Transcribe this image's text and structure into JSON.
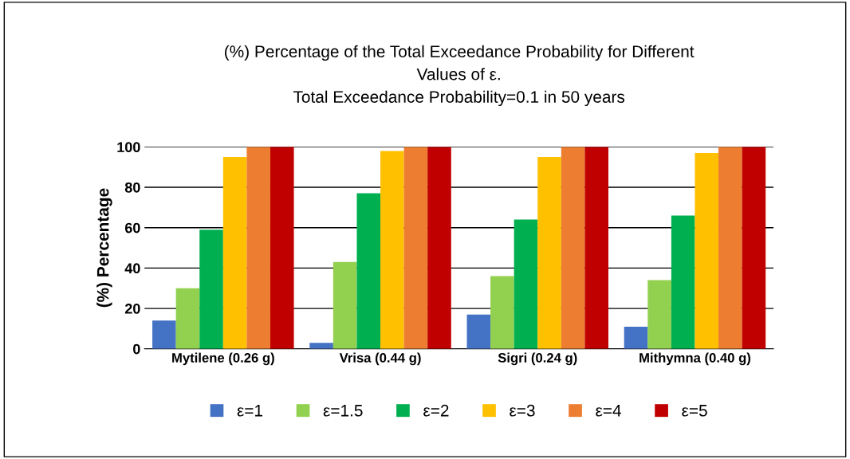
{
  "chart_data": {
    "type": "bar",
    "title": "(%) Percentage of the Total Exceedance Probability for Different\nValues of ε.\nTotal Exceedance Probability=0.1 in 50 years",
    "ylabel": "(%) Percentage",
    "categories": [
      "Mytilene (0.26 g)",
      "Vrisa (0.44 g)",
      "Sigri (0.24 g)",
      "Mithymna (0.40 g)"
    ],
    "series": [
      {
        "name": "ε=1",
        "color": "#4472c4",
        "values": [
          14,
          3,
          17,
          11
        ]
      },
      {
        "name": "ε=1.5",
        "color": "#92d050",
        "values": [
          30,
          43,
          36,
          34
        ]
      },
      {
        "name": "ε=2",
        "color": "#00b050",
        "values": [
          59,
          77,
          64,
          66
        ]
      },
      {
        "name": "ε=3",
        "color": "#ffc000",
        "values": [
          95,
          98,
          95,
          97
        ]
      },
      {
        "name": "ε=4",
        "color": "#ed7d31",
        "values": [
          100,
          100,
          100,
          100
        ]
      },
      {
        "name": "ε=5",
        "color": "#c00000",
        "values": [
          100,
          100,
          100,
          100
        ]
      }
    ],
    "ylim": [
      0,
      100
    ],
    "yticks": [
      0,
      20,
      40,
      60,
      80,
      100
    ],
    "grid": "y",
    "legend": "bottom"
  }
}
